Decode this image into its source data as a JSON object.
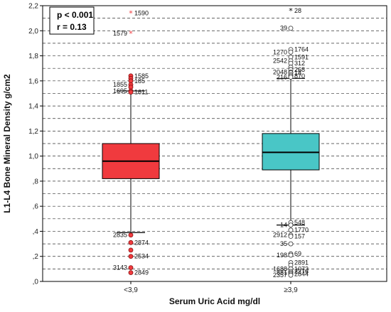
{
  "chart_data": {
    "type": "box",
    "xlabel": "Serum Uric Acid mg/dl",
    "ylabel": "L1-L4 Bone Mineral Density g/cm2",
    "ylim": [
      0,
      2.2
    ],
    "ytick_values": [
      0,
      0.2,
      0.4,
      0.6,
      0.8,
      1.0,
      1.2,
      1.4,
      1.6,
      1.8,
      2.0,
      2.2
    ],
    "ytick_labels": [
      ",0",
      ",2",
      ",4",
      ",6",
      ",8",
      "1,0",
      "1,2",
      "1,4",
      "1,6",
      "1,8",
      "2,0",
      "2,2"
    ],
    "grid": "horizontal-dashed",
    "annotation": {
      "p": "p < 0.001",
      "r": "r = 0.13"
    },
    "colors": {
      "low": "#f03a3e",
      "high": "#49c6c6",
      "outline": "#000000"
    },
    "groups": [
      {
        "category": "<3,9",
        "color": "#f03a3e",
        "whisker_low": 0.39,
        "q1": 0.82,
        "median": 0.96,
        "q3": 1.1,
        "whisker_high": 1.52,
        "outliers": [
          {
            "value": 2.14,
            "label": "1590",
            "kind": "extreme"
          },
          {
            "value": 1.98,
            "label": "1579",
            "kind": "extreme"
          },
          {
            "value": 1.64,
            "label": "1585",
            "kind": "outlier"
          },
          {
            "value": 1.62,
            "label": "",
            "kind": "outlier"
          },
          {
            "value": 1.6,
            "label": "185",
            "kind": "outlier"
          },
          {
            "value": 1.57,
            "label": "1855",
            "kind": "outlier"
          },
          {
            "value": 1.55,
            "label": "",
            "kind": "outlier"
          },
          {
            "value": 1.52,
            "label": "1695",
            "kind": "outlier"
          },
          {
            "value": 1.51,
            "label": "1611",
            "kind": "outlier"
          },
          {
            "value": 0.37,
            "label": "2835",
            "kind": "outlier"
          },
          {
            "value": 0.31,
            "label": "2874",
            "kind": "outlier"
          },
          {
            "value": 0.25,
            "label": "",
            "kind": "outlier"
          },
          {
            "value": 0.2,
            "label": "2534",
            "kind": "outlier"
          },
          {
            "value": 0.11,
            "label": "3143",
            "kind": "outlier"
          },
          {
            "value": 0.07,
            "label": "2849",
            "kind": "outlier"
          }
        ]
      },
      {
        "category": "≥3,9",
        "color": "#49c6c6",
        "whisker_low": 0.45,
        "q1": 0.89,
        "median": 1.03,
        "q3": 1.18,
        "whisker_high": 1.62,
        "outliers": [
          {
            "value": 2.16,
            "label": "28",
            "kind": "extreme"
          },
          {
            "value": 2.02,
            "label": "39",
            "kind": "outlier"
          },
          {
            "value": 1.85,
            "label": "1764",
            "kind": "outlier"
          },
          {
            "value": 1.83,
            "label": "1270",
            "kind": "outlier"
          },
          {
            "value": 1.79,
            "label": "1591",
            "kind": "outlier"
          },
          {
            "value": 1.76,
            "label": "2542",
            "kind": "outlier"
          },
          {
            "value": 1.74,
            "label": "312",
            "kind": "outlier"
          },
          {
            "value": 1.71,
            "label": "",
            "kind": "outlier"
          },
          {
            "value": 1.69,
            "label": "268",
            "kind": "outlier"
          },
          {
            "value": 1.67,
            "label": "2048",
            "kind": "outlier"
          },
          {
            "value": 1.665,
            "label": "18",
            "kind": "outlier"
          },
          {
            "value": 1.65,
            "label": "",
            "kind": "outlier"
          },
          {
            "value": 1.64,
            "label": "870",
            "kind": "outlier"
          },
          {
            "value": 1.63,
            "label": "216",
            "kind": "outlier"
          },
          {
            "value": 0.47,
            "label": "548",
            "kind": "outlier"
          },
          {
            "value": 0.45,
            "label": "14",
            "kind": "outlier"
          },
          {
            "value": 0.41,
            "label": "1770",
            "kind": "outlier"
          },
          {
            "value": 0.37,
            "label": "2912",
            "kind": "outlier"
          },
          {
            "value": 0.36,
            "label": "157",
            "kind": "outlier"
          },
          {
            "value": 0.3,
            "label": "35",
            "kind": "outlier"
          },
          {
            "value": 0.22,
            "label": "69",
            "kind": "outlier"
          },
          {
            "value": 0.21,
            "label": "198",
            "kind": "outlier"
          },
          {
            "value": 0.15,
            "label": "2891",
            "kind": "outlier"
          },
          {
            "value": 0.13,
            "label": "",
            "kind": "outlier"
          },
          {
            "value": 0.1,
            "label": "1073",
            "kind": "outlier"
          },
          {
            "value": 0.1,
            "label": "1688",
            "kind": "outlier"
          },
          {
            "value": 0.08,
            "label": "2276",
            "kind": "outlier"
          },
          {
            "value": 0.07,
            "label": "881",
            "kind": "outlier"
          },
          {
            "value": 0.06,
            "label": "2844",
            "kind": "outlier"
          },
          {
            "value": 0.05,
            "label": "2357",
            "kind": "outlier"
          }
        ]
      }
    ]
  }
}
